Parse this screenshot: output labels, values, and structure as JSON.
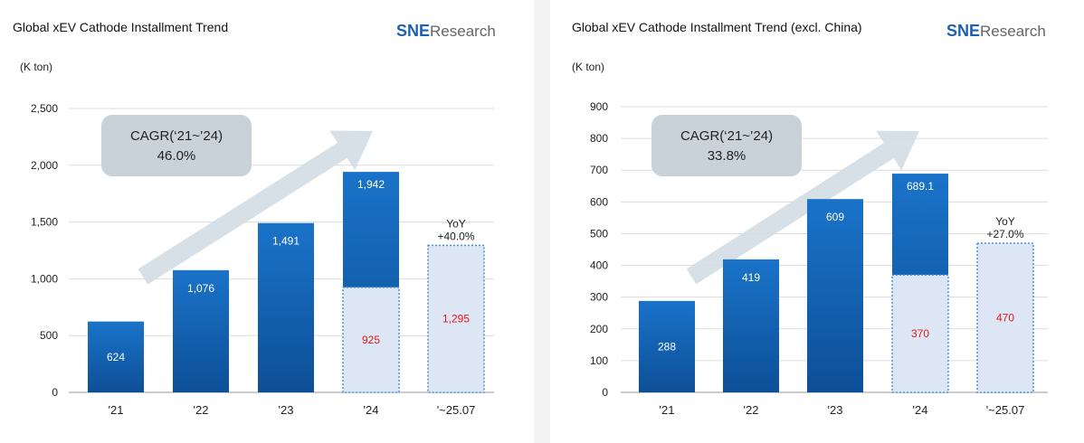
{
  "brand": {
    "sne": "SNE",
    "research": "Research"
  },
  "colors": {
    "bar_top": "#1a73c9",
    "bar_bottom": "#0d4f97",
    "dashed": "#4a90d9",
    "dashed_fill": "#dde6f5",
    "red": "#e81818",
    "cagr_box": "#c9d2d9",
    "arrow": "#d3dde4"
  },
  "charts": [
    {
      "title": "Global xEV Cathode Installment Trend",
      "unit": "(K ton)",
      "cagr_label": "CAGR(‘21~’24)",
      "cagr_value": "46.0%",
      "yoy_label": "YoY",
      "yoy_value": "+40.0%"
    },
    {
      "title": "Global xEV Cathode Installment Trend (excl. China)",
      "unit": "(K ton)",
      "cagr_label": "CAGR(‘21~’24)",
      "cagr_value": "33.8%",
      "yoy_label": "YoY",
      "yoy_value": "+27.0%"
    }
  ],
  "chart_data": [
    {
      "type": "bar",
      "title": "Global xEV Cathode Installment Trend",
      "ylabel": "(K ton)",
      "ylim": [
        0,
        2500
      ],
      "yticks": [
        0,
        500,
        1000,
        1500,
        2000,
        2500
      ],
      "ytick_labels": [
        "0",
        "500",
        "1,000",
        "1,500",
        "2,000",
        "2,500"
      ],
      "categories": [
        "'21",
        "'22",
        "'23",
        "'24",
        "'~25.07"
      ],
      "values": [
        624,
        1076,
        1491,
        1942,
        1295
      ],
      "value_labels": [
        "624",
        "1,076",
        "1,491",
        "1,942",
        "1,295"
      ],
      "partial": {
        "category": "'24",
        "value": 925,
        "label": "925"
      },
      "projected_index": 4
    },
    {
      "type": "bar",
      "title": "Global xEV Cathode Installment Trend (excl. China)",
      "ylabel": "(K ton)",
      "ylim": [
        0,
        900
      ],
      "yticks": [
        0,
        100,
        200,
        300,
        400,
        500,
        600,
        700,
        800,
        900
      ],
      "ytick_labels": [
        "0",
        "100",
        "200",
        "300",
        "400",
        "500",
        "600",
        "700",
        "800",
        "900"
      ],
      "categories": [
        "'21",
        "'22",
        "'23",
        "'24",
        "'~25.07"
      ],
      "values": [
        288,
        419,
        609,
        689.1,
        470
      ],
      "value_labels": [
        "288",
        "419",
        "609",
        "689.1",
        "470"
      ],
      "partial": {
        "category": "'24",
        "value": 370,
        "label": "370"
      },
      "projected_index": 4
    }
  ]
}
